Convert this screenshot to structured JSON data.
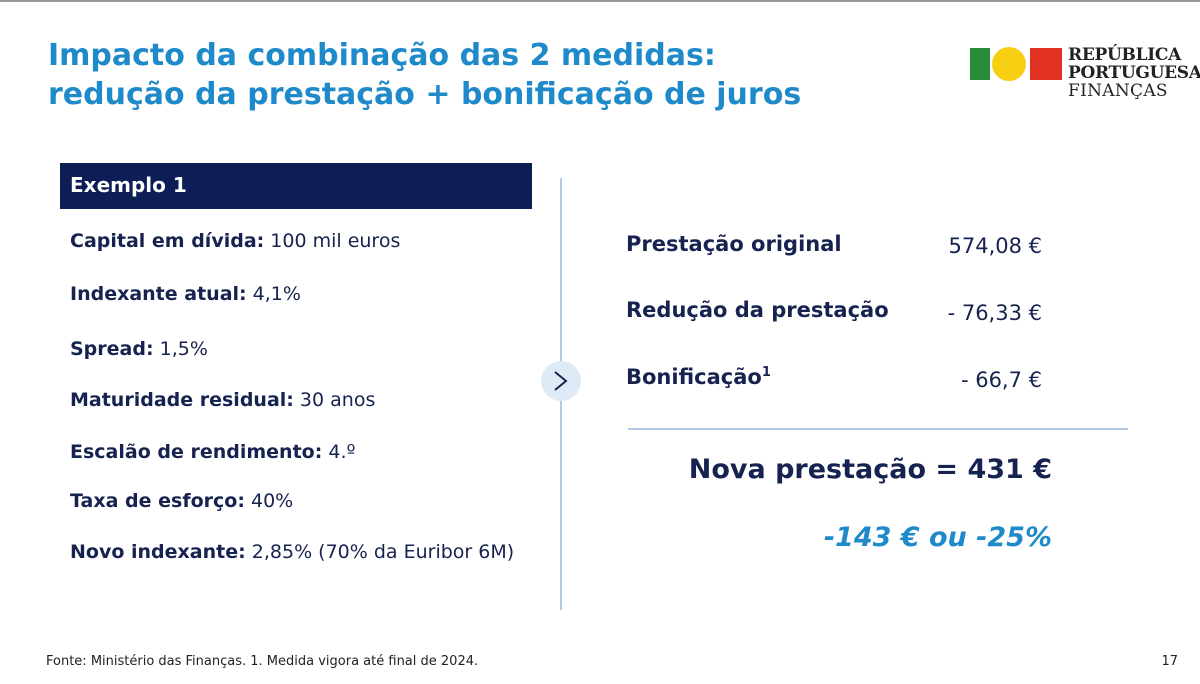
{
  "title": {
    "line1": "Impacto da combinação das 2 medidas:",
    "line2": "redução da prestação + bonificação de juros"
  },
  "logo": {
    "line1": "REPÚBLICA",
    "line2": "PORTUGUESA",
    "line3": "FINANÇAS"
  },
  "example": {
    "title": "Exemplo 1",
    "params": [
      {
        "label": "Capital em dívida:",
        "value": " 100 mil euros"
      },
      {
        "label": "Indexante atual:",
        "value": " 4,1%"
      },
      {
        "label": "Spread:",
        "value": " 1,5%"
      },
      {
        "label": "Maturidade residual:",
        "value": " 30 anos"
      },
      {
        "label": "Escalão de rendimento:",
        "value": " 4.º"
      },
      {
        "label": "Taxa de esforço:",
        "value": " 40%"
      },
      {
        "label": "Novo indexante:",
        "value": " 2,85% (70% da Euribor 6M)"
      }
    ]
  },
  "calc": {
    "rows": [
      {
        "label": "Prestação original",
        "sup": "",
        "value": "574,08 €"
      },
      {
        "label": "Redução da prestação",
        "sup": "",
        "value": "- 76,33 €"
      },
      {
        "label": "Bonificação",
        "sup": "1",
        "value": "- 66,7 €"
      }
    ],
    "total": "Nova prestação = 431 €",
    "savings": "-143 € ou -25%"
  },
  "footer": {
    "source": "Fonte: Ministério das Finanças. 1. Medida vigora até final de 2024.",
    "page": "17"
  },
  "colors": {
    "title_blue": "#1f8ac9",
    "navy": "#0d1d55",
    "text_navy": "#16224f",
    "divider": "#b3c9e4",
    "flag_green": "#2a8c3a",
    "flag_yellow": "#f6cf12",
    "flag_red": "#e23223"
  },
  "icons": {
    "navigation": "chevron-right-icon"
  }
}
